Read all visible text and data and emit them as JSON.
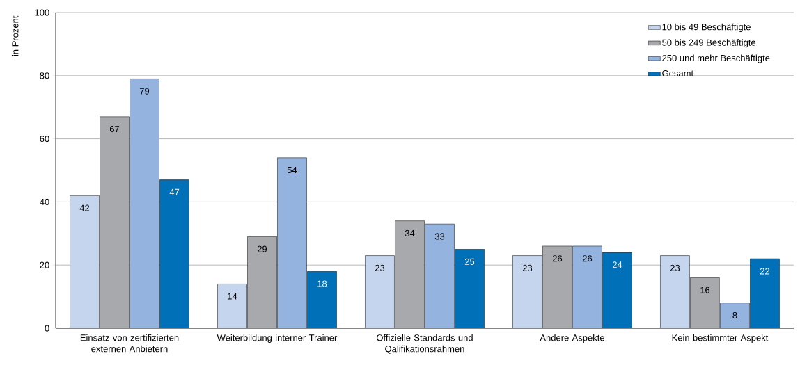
{
  "chart_data": {
    "type": "bar",
    "ylabel": "in Prozent",
    "categories": [
      "Einsatz von zertifizierten externen Anbietern",
      "Weiterbildung interner Trainer",
      "Offizielle Standards und Qalifikationsrahmen",
      "Andere Aspekte",
      "Kein bestimmter Aspekt"
    ],
    "series": [
      {
        "name": "10 bis 49 Beschäftigte",
        "color": "#c6d5ee",
        "values": [
          42,
          14,
          23,
          23,
          23
        ]
      },
      {
        "name": "50 bis 249 Beschäftigte",
        "color": "#a7a9ac",
        "values": [
          67,
          29,
          34,
          26,
          16
        ]
      },
      {
        "name": "250 und mehr Beschäftigte",
        "color": "#95b3df",
        "values": [
          79,
          54,
          33,
          26,
          8
        ]
      },
      {
        "name": "Gesamt",
        "color": "#0071b9",
        "values": [
          47,
          18,
          25,
          24,
          22
        ]
      }
    ],
    "ylim": [
      0,
      100
    ],
    "yticks": [
      0,
      20,
      40,
      60,
      80,
      100
    ],
    "grid": "y",
    "legend": "top right",
    "data_labels": true
  }
}
